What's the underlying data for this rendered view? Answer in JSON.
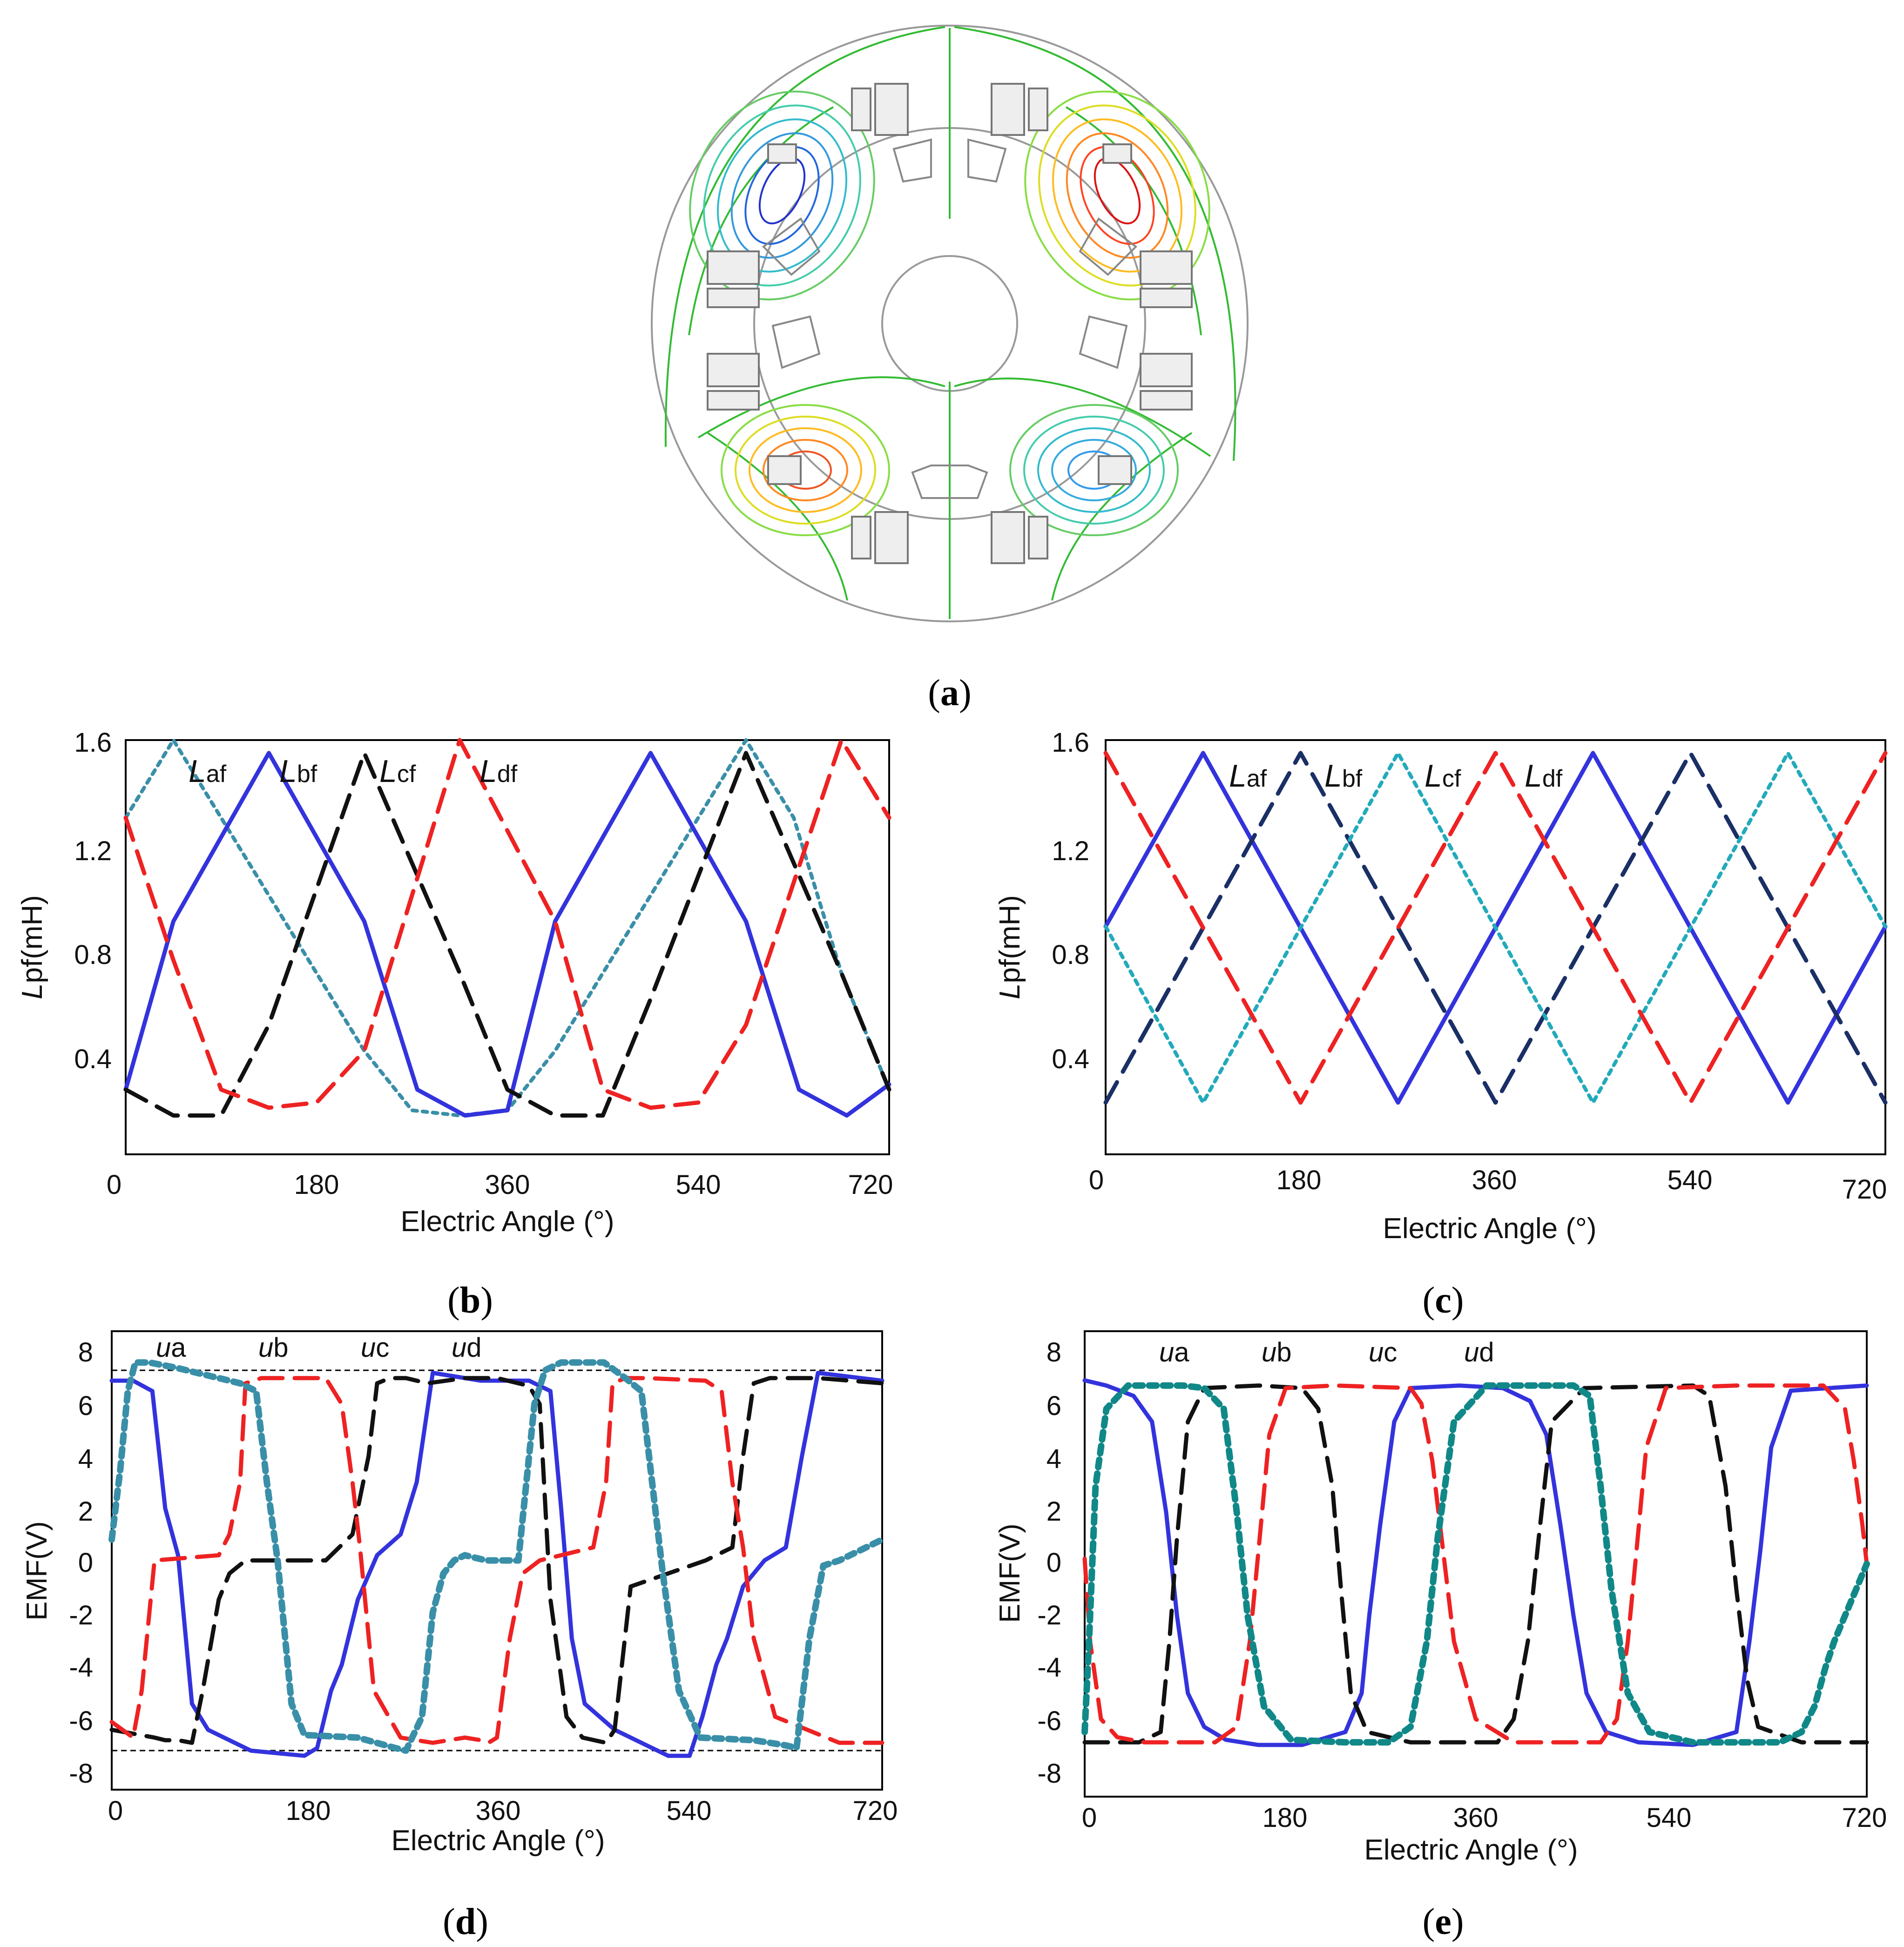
{
  "panel_labels": {
    "a": {
      "open": "(",
      "letter": "a",
      "close": ")"
    },
    "b": {
      "open": "(",
      "letter": "b",
      "close": ")"
    },
    "c": {
      "open": "(",
      "letter": "c",
      "close": ")"
    },
    "d": {
      "open": "(",
      "letter": "d",
      "close": ")"
    },
    "e": {
      "open": "(",
      "letter": "e",
      "close": ")"
    }
  },
  "colors": {
    "blue": "#3333dd",
    "red": "#ee2222",
    "black": "#111111",
    "teal": "#3a8fa8",
    "teal_c": "#22aabb",
    "navy": "#1a2f66",
    "teal_e": "#118888",
    "boundary": "#999999"
  },
  "chart_data": [
    {
      "id": "b",
      "type": "line",
      "xlabel": "Electric Angle (°)",
      "ylabel_italic": "L",
      "ylabel_rest": "pf(mH)",
      "xlim": [
        0,
        720
      ],
      "ylim": [
        0,
        1.6
      ],
      "xticks": [
        "0",
        "180",
        "360",
        "540",
        "720"
      ],
      "yticks": [
        "0.4",
        "0.8",
        "1.2",
        "1.6"
      ],
      "curve_labels": [
        {
          "main": "L",
          "sub": "af"
        },
        {
          "main": "L",
          "sub": "bf"
        },
        {
          "main": "L",
          "sub": "cf"
        },
        {
          "main": "L",
          "sub": "df"
        }
      ],
      "series": [
        {
          "x": [
            0,
            45,
            135,
            225,
            270,
            315,
            360,
            405,
            495,
            585,
            630,
            675,
            720
          ],
          "y": [
            1.3,
            1.6,
            1.0,
            0.4,
            0.17,
            0.15,
            0.17,
            0.4,
            1.0,
            1.6,
            1.3,
            0.7,
            0.25
          ]
        },
        {
          "x": [
            0,
            45,
            135,
            225,
            275,
            320,
            360,
            405,
            495,
            585,
            635,
            680,
            720
          ],
          "y": [
            0.25,
            0.9,
            1.55,
            0.9,
            0.25,
            0.15,
            0.17,
            0.9,
            1.55,
            0.9,
            0.25,
            0.15,
            0.27
          ]
        },
        {
          "x": [
            0,
            45,
            90,
            135,
            225,
            315,
            360,
            405,
            450,
            495,
            585,
            675,
            720
          ],
          "y": [
            0.25,
            0.15,
            0.15,
            0.5,
            1.55,
            0.7,
            0.25,
            0.15,
            0.15,
            0.6,
            1.55,
            0.7,
            0.25
          ]
        },
        {
          "x": [
            0,
            45,
            90,
            135,
            180,
            225,
            315,
            405,
            450,
            495,
            540,
            585,
            675,
            720
          ],
          "y": [
            1.3,
            0.75,
            0.25,
            0.18,
            0.2,
            0.4,
            1.6,
            0.9,
            0.25,
            0.18,
            0.2,
            0.5,
            1.6,
            1.3
          ]
        }
      ]
    },
    {
      "id": "c",
      "type": "line",
      "xlabel": "Electric Angle (°)",
      "ylabel_italic": "L",
      "ylabel_rest": "pf(mH)",
      "xlim": [
        0,
        720
      ],
      "ylim": [
        0,
        1.6
      ],
      "xticks": [
        "0",
        "180",
        "360",
        "540",
        "720"
      ],
      "yticks": [
        "0.4",
        "0.8",
        "1.2",
        "1.6"
      ],
      "curve_labels": [
        {
          "main": "L",
          "sub": "af"
        },
        {
          "main": "L",
          "sub": "bf"
        },
        {
          "main": "L",
          "sub": "cf"
        },
        {
          "main": "L",
          "sub": "df"
        }
      ],
      "series": [
        {
          "x": [
            0,
            90,
            270,
            450,
            630,
            720
          ],
          "y": [
            0.88,
            1.55,
            0.2,
            1.55,
            0.2,
            0.88
          ]
        },
        {
          "x": [
            0,
            180,
            360,
            540,
            720
          ],
          "y": [
            0.2,
            1.55,
            0.2,
            1.55,
            0.2
          ]
        },
        {
          "x": [
            0,
            90,
            270,
            450,
            630,
            720
          ],
          "y": [
            0.88,
            0.2,
            1.55,
            0.2,
            1.55,
            0.88
          ]
        },
        {
          "x": [
            0,
            180,
            360,
            540,
            720
          ],
          "y": [
            1.55,
            0.2,
            1.55,
            0.2,
            1.55
          ]
        }
      ]
    },
    {
      "id": "d",
      "type": "line",
      "xlabel": "Electric Angle (°)",
      "ylabel": "EMF(V)",
      "xlim": [
        0,
        720
      ],
      "ylim": [
        -8.8,
        8.8
      ],
      "xticks": [
        "0",
        "180",
        "360",
        "540",
        "720"
      ],
      "yticks": [
        "8",
        "6",
        "4",
        "2",
        "0",
        "-2",
        "-4",
        "-6",
        "-8"
      ],
      "hlines": [
        7.3,
        -7.3
      ],
      "curve_labels": [
        {
          "main": "u",
          "sub": "a"
        },
        {
          "main": "u",
          "sub": "b"
        },
        {
          "main": "u",
          "sub": "c"
        },
        {
          "main": "u",
          "sub": "d"
        }
      ],
      "series": [
        {
          "x": [
            0,
            20,
            38,
            50,
            62,
            75,
            90,
            130,
            180,
            192,
            205,
            215,
            230,
            248,
            270,
            285,
            300,
            345,
            390,
            410,
            420,
            430,
            442,
            470,
            520,
            540,
            552,
            565,
            575,
            590,
            610,
            630,
            645,
            660,
            720
          ],
          "y": [
            6.9,
            6.9,
            6.5,
            2,
            0.2,
            -5.5,
            -6.5,
            -7.3,
            -7.5,
            -7.2,
            -5,
            -4,
            -1.5,
            0.2,
            1,
            3,
            7.2,
            6.9,
            6.9,
            6.5,
            2,
            -3,
            -5.5,
            -6.5,
            -7.5,
            -7.5,
            -6,
            -4,
            -3,
            -1,
            0,
            0.5,
            4,
            7.2,
            6.9
          ]
        },
        {
          "x": [
            0,
            40,
            50,
            62,
            75,
            85,
            100,
            110,
            125,
            200,
            225,
            240,
            248,
            260,
            275,
            295,
            330,
            360,
            380,
            390,
            400,
            410,
            425,
            440,
            462,
            470,
            485,
            555,
            580,
            590,
            600,
            615,
            660,
            720
          ],
          "y": [
            -6.5,
            -6.8,
            -6.9,
            -6.9,
            -7,
            -5,
            -1.5,
            -0.5,
            0,
            0,
            1,
            4,
            6.8,
            7,
            7,
            6.8,
            7,
            7,
            6.8,
            6.7,
            6,
            -1.5,
            -6,
            -6.8,
            -7,
            -6.5,
            -1,
            0,
            0.5,
            4,
            6.8,
            7,
            7,
            6.8
          ]
        },
        {
          "x": [
            0,
            10,
            20,
            28,
            40,
            100,
            110,
            120,
            125,
            140,
            200,
            215,
            225,
            232,
            245,
            270,
            300,
            330,
            345,
            352,
            360,
            372,
            384,
            400,
            450,
            462,
            468,
            480,
            500,
            555,
            570,
            580,
            590,
            600,
            620,
            680,
            720
          ],
          "y": [
            -6.2,
            -6.5,
            -6.8,
            -5,
            0,
            0.2,
            1,
            3,
            6.8,
            7,
            7,
            6,
            3,
            0.5,
            -5,
            -6.8,
            -7,
            -6.8,
            -6.9,
            -7,
            -6.8,
            -3,
            -0.5,
            0,
            0.5,
            3,
            6.8,
            7,
            7,
            6.9,
            6.5,
            3,
            0.5,
            -3,
            -6,
            -7,
            -7
          ]
        },
        {
          "x": [
            0,
            8,
            15,
            22,
            35,
            60,
            120,
            135,
            145,
            155,
            168,
            180,
            230,
            265,
            275,
            290,
            300,
            310,
            320,
            330,
            350,
            380,
            395,
            405,
            420,
            460,
            480,
            495,
            505,
            515,
            530,
            550,
            600,
            630,
            640,
            652,
            665,
            680,
            720
          ],
          "y": [
            0.8,
            3.5,
            6.5,
            7.6,
            7.6,
            7.4,
            6.8,
            6.5,
            3,
            0,
            -5.5,
            -6.7,
            -6.8,
            -7.2,
            -7.3,
            -6,
            -2,
            -0.5,
            0,
            0.2,
            0,
            0,
            6,
            7.3,
            7.6,
            7.6,
            7,
            6.5,
            3,
            -0.5,
            -5,
            -6.8,
            -6.9,
            -7.1,
            -7.2,
            -3,
            -0.2,
            0,
            0.8
          ]
        }
      ]
    },
    {
      "id": "e",
      "type": "line",
      "xlabel": "Electric Angle (°)",
      "ylabel": "EMF(V)",
      "xlim": [
        0,
        720
      ],
      "ylim": [
        -9,
        9
      ],
      "xticks": [
        "0",
        "180",
        "360",
        "540",
        "720"
      ],
      "yticks": [
        "8",
        "6",
        "4",
        "2",
        "0",
        "-2",
        "-4",
        "-6",
        "-8"
      ],
      "curve_labels": [
        {
          "main": "u",
          "sub": "a"
        },
        {
          "main": "u",
          "sub": "b"
        },
        {
          "main": "u",
          "sub": "c"
        },
        {
          "main": "u",
          "sub": "d"
        }
      ],
      "series": [
        {
          "x": [
            0,
            20,
            45,
            62,
            75,
            85,
            95,
            110,
            130,
            160,
            200,
            240,
            255,
            262,
            272,
            285,
            300,
            345,
            385,
            410,
            425,
            438,
            450,
            462,
            480,
            510,
            560,
            600,
            612,
            622,
            632,
            650,
            720
          ],
          "y": [
            7.1,
            6.9,
            6.5,
            5.5,
            2,
            -2,
            -5,
            -6.3,
            -6.8,
            -7,
            -7,
            -6.5,
            -5,
            -2,
            1.5,
            5.5,
            6.8,
            6.9,
            6.8,
            6.3,
            5,
            1.5,
            -2,
            -5,
            -6.5,
            -6.9,
            -7,
            -6.5,
            -3,
            0.5,
            4.5,
            6.7,
            6.9
          ]
        },
        {
          "x": [
            0,
            50,
            70,
            78,
            85,
            95,
            110,
            160,
            200,
            215,
            228,
            236,
            245,
            260,
            300,
            380,
            395,
            408,
            418,
            430,
            460,
            560,
            575,
            590,
            600,
            610,
            620,
            660,
            720
          ],
          "y": [
            -6.9,
            -6.9,
            -6.5,
            -3,
            1,
            5.5,
            6.8,
            6.9,
            6.8,
            6,
            3,
            -1,
            -5,
            -6.5,
            -6.9,
            -6.9,
            -6,
            -3,
            1,
            5.5,
            6.8,
            6.9,
            6.5,
            3,
            -1,
            -4.5,
            -6.3,
            -6.9,
            -6.9
          ]
        },
        {
          "x": [
            0,
            5,
            15,
            30,
            55,
            120,
            140,
            152,
            160,
            170,
            185,
            230,
            300,
            310,
            320,
            330,
            340,
            360,
            395,
            475,
            490,
            500,
            508,
            517,
            535,
            600,
            680,
            700,
            708,
            716,
            720
          ],
          "y": [
            0.2,
            -3,
            -6,
            -6.7,
            -6.9,
            -6.9,
            -6.3,
            -3,
            0.5,
            5,
            6.8,
            6.9,
            6.8,
            6.2,
            4,
            0.5,
            -3,
            -6,
            -6.9,
            -6.9,
            -6,
            -3,
            0.5,
            4.5,
            6.8,
            6.9,
            6.9,
            6,
            4,
            1.5,
            0
          ]
        },
        {
          "x": [
            0,
            4,
            10,
            20,
            40,
            90,
            110,
            128,
            140,
            150,
            165,
            190,
            240,
            280,
            300,
            315,
            325,
            340,
            370,
            450,
            465,
            475,
            485,
            500,
            520,
            560,
            640,
            660,
            672,
            682,
            690,
            700,
            710,
            720
          ],
          "y": [
            -6.5,
            -3,
            3,
            6,
            6.9,
            6.9,
            6.8,
            6,
            2,
            -2,
            -5.5,
            -6.8,
            -6.9,
            -6.9,
            -6.3,
            -3,
            1,
            5.5,
            6.9,
            6.9,
            6.5,
            3,
            -1,
            -5,
            -6.5,
            -6.9,
            -6.9,
            -6.5,
            -5.5,
            -4,
            -3,
            -2,
            -1,
            0
          ]
        }
      ]
    }
  ]
}
